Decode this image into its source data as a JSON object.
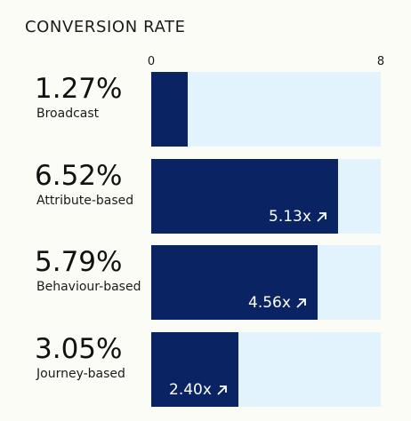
{
  "title": "CONVERSION RATE",
  "colors": {
    "background": "#fcfcf6",
    "bar_fill": "#0a2463",
    "bar_track": "#e3f3fd"
  },
  "axis": {
    "min_label": "0",
    "max_label": "8"
  },
  "rows": [
    {
      "value_text": "1.27%",
      "label": "Broadcast",
      "uplift": ""
    },
    {
      "value_text": "6.52%",
      "label": "Attribute-based",
      "uplift": "5.13x"
    },
    {
      "value_text": "5.79%",
      "label": "Behaviour-based",
      "uplift": "4.56x"
    },
    {
      "value_text": "3.05%",
      "label": "Journey-based",
      "uplift": "2.40x"
    }
  ],
  "chart_data": {
    "type": "bar",
    "orientation": "horizontal",
    "title": "CONVERSION RATE",
    "categories": [
      "Broadcast",
      "Attribute-based",
      "Behaviour-based",
      "Journey-based"
    ],
    "values": [
      1.27,
      6.52,
      5.79,
      3.05
    ],
    "uplift": [
      null,
      5.13,
      4.56,
      2.4
    ],
    "xlim": [
      0,
      8
    ],
    "grid": false,
    "legend": "none"
  }
}
